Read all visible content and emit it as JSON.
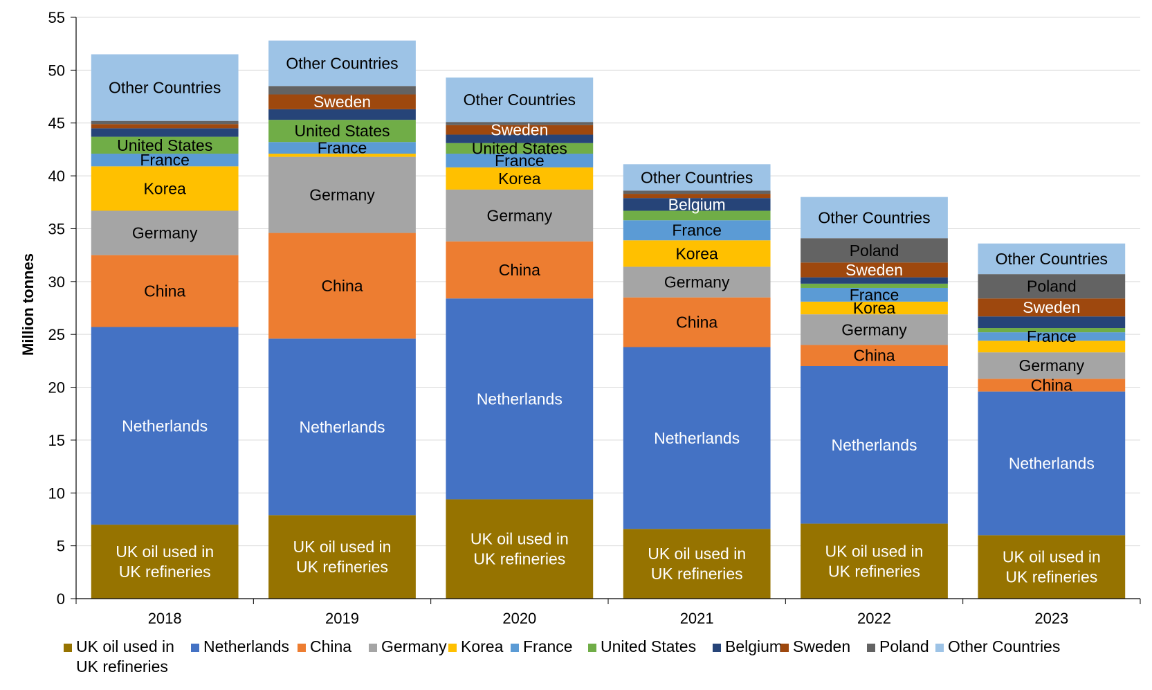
{
  "chart_data": {
    "type": "bar",
    "stacked": true,
    "ylabel": "Million tonnes",
    "ylim": [
      0,
      55
    ],
    "ytick_step": 5,
    "grid": true,
    "legend_position": "bottom",
    "categories": [
      "2018",
      "2019",
      "2020",
      "2021",
      "2022",
      "2023"
    ],
    "series": [
      {
        "name": "UK oil used in UK refineries",
        "color": "#967300",
        "label_color": "#ffffff",
        "values": [
          7.0,
          7.9,
          9.4,
          6.6,
          7.1,
          6.0
        ]
      },
      {
        "name": "Netherlands",
        "color": "#4472C4",
        "label_color": "#ffffff",
        "values": [
          18.7,
          16.7,
          19.0,
          17.2,
          14.9,
          13.6
        ]
      },
      {
        "name": "China",
        "color": "#ED7D31",
        "label_color": "#000000",
        "values": [
          6.8,
          10.0,
          5.4,
          4.7,
          2.0,
          1.2
        ]
      },
      {
        "name": "Germany",
        "color": "#A5A5A5",
        "label_color": "#000000",
        "values": [
          4.2,
          7.2,
          4.9,
          2.9,
          2.9,
          2.5
        ]
      },
      {
        "name": "Korea",
        "color": "#FFC000",
        "label_color": "#000000",
        "values": [
          4.2,
          0.3,
          2.1,
          2.5,
          1.2,
          1.1
        ]
      },
      {
        "name": "France",
        "color": "#5B9BD5",
        "label_color": "#000000",
        "values": [
          1.2,
          1.1,
          1.3,
          1.9,
          1.3,
          0.8
        ]
      },
      {
        "name": "United States",
        "color": "#70AD47",
        "label_color": "#000000",
        "values": [
          1.6,
          2.1,
          1.0,
          0.9,
          0.4,
          0.4
        ]
      },
      {
        "name": "Belgium",
        "color": "#264478",
        "label_color": "#ffffff",
        "values": [
          0.8,
          1.0,
          0.8,
          1.2,
          0.6,
          1.1
        ]
      },
      {
        "name": "Sweden",
        "color": "#9E480E",
        "label_color": "#ffffff",
        "values": [
          0.4,
          1.4,
          0.9,
          0.4,
          1.4,
          1.7
        ]
      },
      {
        "name": "Poland",
        "color": "#636363",
        "label_color": "#000000",
        "values": [
          0.3,
          0.8,
          0.3,
          0.3,
          2.3,
          2.3
        ]
      },
      {
        "name": "Other Countries",
        "color": "#9DC3E6",
        "label_color": "#000000",
        "values": [
          6.3,
          4.3,
          4.2,
          2.5,
          3.9,
          2.9
        ]
      }
    ],
    "segment_labels": [
      [
        "UK oil used in|UK refineries",
        "Netherlands",
        "China",
        "Germany",
        "Korea",
        "France",
        "United States",
        "",
        "",
        "",
        "Other Countries"
      ],
      [
        "UK oil used in|UK refineries",
        "Netherlands",
        "China",
        "Germany",
        "",
        "France",
        "United States",
        "",
        "Sweden",
        "",
        "Other Countries"
      ],
      [
        "UK oil used in|UK refineries",
        "Netherlands",
        "China",
        "Germany",
        "Korea",
        "France",
        "United States",
        "",
        "Sweden",
        "",
        "Other Countries"
      ],
      [
        "UK oil used in|UK refineries",
        "Netherlands",
        "China",
        "Germany",
        "Korea",
        "France",
        "",
        "Belgium",
        "",
        "",
        "Other Countries"
      ],
      [
        "UK oil used in|UK refineries",
        "Netherlands",
        "China",
        "Germany",
        "Korea",
        "France",
        "",
        "",
        "Sweden",
        "Poland",
        "Other Countries"
      ],
      [
        "UK oil used in|UK refineries",
        "Netherlands",
        "China",
        "Germany",
        "",
        "France",
        "",
        "",
        "Sweden",
        "Poland",
        "Other Countries"
      ]
    ],
    "legend_labels": [
      "UK oil used in",
      "UK refineries"
    ]
  }
}
